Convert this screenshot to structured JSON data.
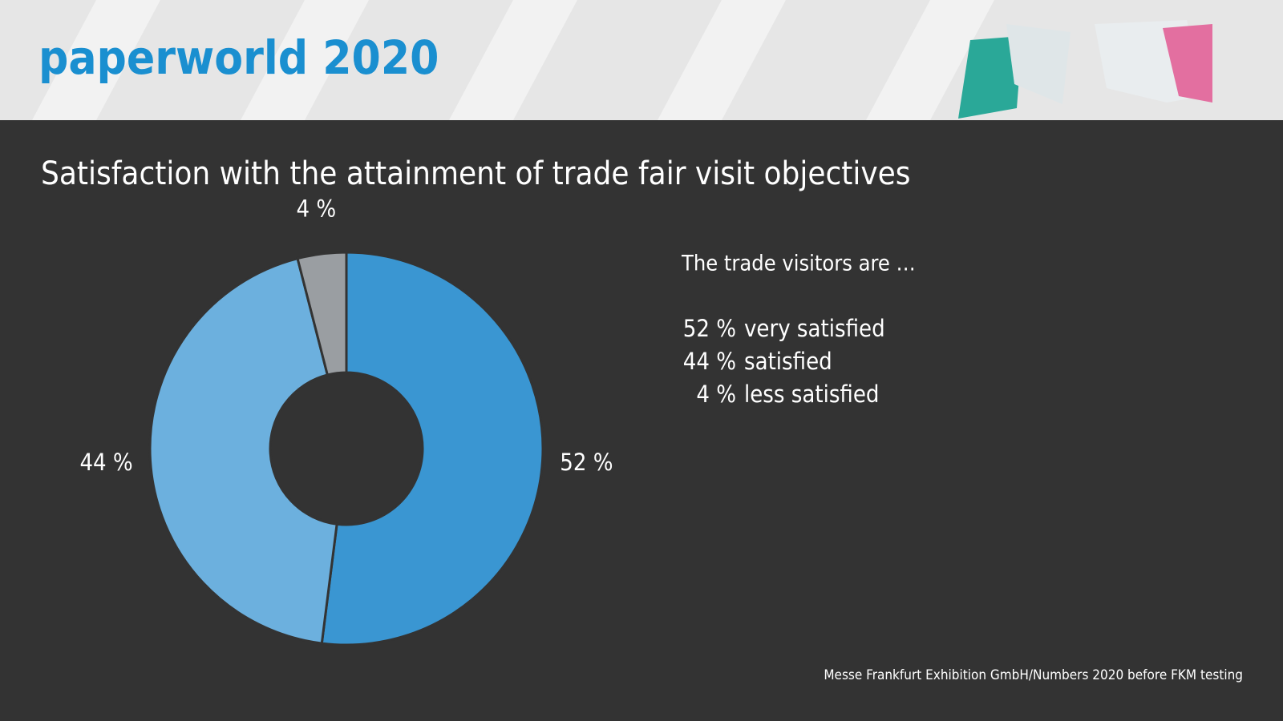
{
  "header": "paperworld 2020",
  "chart_data": {
    "type": "donut",
    "title": "Satisfaction with the attainment of trade fair visit objectives",
    "legend_title": "The trade visitors are …",
    "categories": [
      "very satisfied",
      "satisfied",
      "less satisfied"
    ],
    "values": [
      52,
      44,
      4
    ],
    "value_labels": [
      "52 %",
      "44 %",
      "4 %"
    ],
    "colors": [
      "#3a96d2",
      "#6cb0de",
      "#9a9ea2"
    ],
    "source": "Messe Frankfurt Exhibition GmbH/Numbers 2020 before FKM testing"
  }
}
